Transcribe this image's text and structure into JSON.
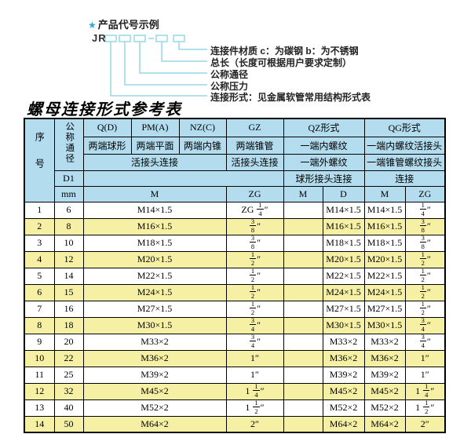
{
  "diagram": {
    "star": "★",
    "title": "产品代号示例",
    "prefix": "JR",
    "labels": [
      "连接件材质  c：为碳钢  b：为不锈钢",
      "总长（长度可根据用户要求定制）",
      "公称通径",
      "公称压力",
      "连接形式：见金属软管常用结构形式表"
    ]
  },
  "table": {
    "title": "螺母连接形式参考表",
    "header": {
      "serial": "序号",
      "nominal_diameter": "公称通径",
      "d1": "D1",
      "mm": "mm",
      "q": "Q(D)",
      "q_desc": "两端球形",
      "pm": "PM(A)",
      "pm_desc": "两端平面",
      "nz": "NZ(C)",
      "nz_desc": "两端内锥",
      "gz": "GZ",
      "gz_desc": "两端锥管",
      "union3": "活接头连接",
      "union_gz": "活接头连接",
      "qz": "QZ形式",
      "qz_desc1": "一端内螺纹",
      "qz_desc2": "一端外螺纹",
      "qz_desc3": "球形接头连接",
      "qg": "QG形式",
      "qg_desc1": "一端内螺纹活接头",
      "qg_desc2": "一端锥管螺纹接头",
      "qg_desc3": "连接",
      "m_big": "M",
      "zg_big": "ZG",
      "sub_m1": "M",
      "sub_d": "D",
      "sub_m2": "M",
      "sub_zg": "ZG"
    },
    "rows": [
      [
        "1",
        "6",
        "M14×1.5",
        "ZG 1/4″",
        "",
        "M14×1.5",
        "M14×1.5",
        "1/4″"
      ],
      [
        "2",
        "8",
        "M16×1.5",
        "3/8″",
        "",
        "M16×1.5",
        "M16×1.5",
        "3/8″"
      ],
      [
        "3",
        "10",
        "M18×1.5",
        "3/8″",
        "",
        "M18×1.5",
        "M18×1.5",
        "3/8″"
      ],
      [
        "4",
        "12",
        "M20×1.5",
        "1/2″",
        "",
        "M20×1.5",
        "M20×1.5",
        "1/2″"
      ],
      [
        "5",
        "14",
        "M22×1.5",
        "1/2″",
        "",
        "M22×1.5",
        "M22×1.5",
        "1/2″"
      ],
      [
        "6",
        "15",
        "M24×1.5",
        "1/2″",
        "",
        "M24×1.5",
        "M24×1.5",
        "1/2″"
      ],
      [
        "7",
        "16",
        "M27×1.5",
        "1/2″",
        "",
        "M27×1.5",
        "M27×1.5",
        "1/2″"
      ],
      [
        "8",
        "18",
        "M30×1.5",
        "3/4″",
        "",
        "M30×1.5",
        "M30×1.5",
        "3/4″"
      ],
      [
        "9",
        "20",
        "M33×2",
        "3/4″",
        "",
        "M33×2",
        "M33×2",
        "3/4″"
      ],
      [
        "10",
        "22",
        "M36×2",
        "1″",
        "",
        "M36×2",
        "M36×2",
        "1″"
      ],
      [
        "11",
        "25",
        "M39×2",
        "1″",
        "",
        "M39×2",
        "M39×2",
        "1″"
      ],
      [
        "12",
        "32",
        "M45×2",
        "1 1/4″",
        "",
        "M45×2",
        "M45×2",
        "1 1/4″"
      ],
      [
        "13",
        "40",
        "M52×2",
        "1 1/2″",
        "",
        "M52×2",
        "M52×2",
        "1 1/2″"
      ],
      [
        "14",
        "50",
        "M64×2",
        "2″",
        "",
        "M64×2",
        "M64×2",
        "2″"
      ]
    ]
  },
  "colors": {
    "header_blue": "#b3ddef",
    "row_yellow": "#f5f0a3",
    "diagram_cyan": "#96d8e8",
    "star_blue": "#2aa9de"
  }
}
